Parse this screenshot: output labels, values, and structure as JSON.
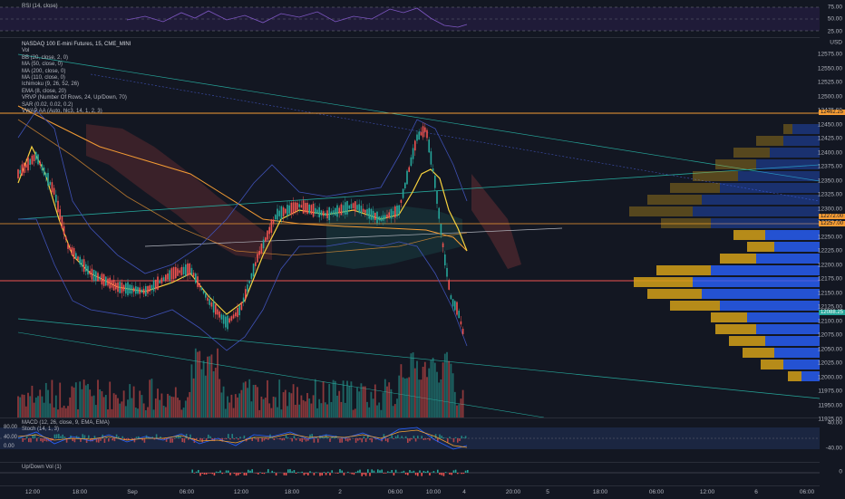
{
  "rsi": {
    "label": "RSI (14, close)",
    "axis": [
      "75.00",
      "50.00",
      "25.00"
    ]
  },
  "main": {
    "title": "NASDAQ 100 E-mini Futures, 15, CME_MINI",
    "currency": "USD",
    "indicators": [
      "Vol",
      "BB (20, close, 2, 0)",
      "MA (50, close, 0)",
      "MA (200, close, 0)",
      "MA (110, close, 0)",
      "Ichimoku (9, 26, 52, 26)",
      "EMA (8, close, 20)",
      "VRVP (Number Of Rows, 24, Up/Down, 70)",
      "SAR (0.02, 0.02, 0.2)",
      "VWAP AA (Auto, hlc3, 14, 1, 2, 3)"
    ],
    "price_axis": [
      "12575.00",
      "12550.00",
      "12525.00",
      "12500.00",
      "12475.00",
      "12450.00",
      "12425.00",
      "12400.00",
      "12375.00",
      "12350.00",
      "12325.00",
      "12300.00",
      "12275.00",
      "12250.00",
      "12225.00",
      "12200.00",
      "12175.00",
      "12150.00",
      "12125.00",
      "12100.00",
      "12075.00",
      "12050.00",
      "12025.00",
      "12000.00",
      "11975.00",
      "11950.00",
      "11925.00"
    ],
    "tags": {
      "top_orange": "12462.25",
      "mid_orange_1": "12272.00",
      "mid_orange_2": "12257.00",
      "current_price": "12088.25"
    }
  },
  "macd": {
    "label": "MACD (12, 26, close, 9, EMA, EMA)",
    "stoch": "Stoch (14, 1, 3)",
    "left_axis": [
      "80.00",
      "40.00",
      "0.00"
    ],
    "right_axis": [
      "40.00",
      "-40.00"
    ]
  },
  "updown": {
    "label": "Up/Down Vol (1)",
    "axis": "0"
  },
  "time_axis": [
    "12:00",
    "18:00",
    "Sep",
    "06:00",
    "12:00",
    "18:00",
    "2",
    "06:00",
    "10:00",
    "4",
    "20:00",
    "5",
    "18:00",
    "06:00",
    "12:00",
    "6",
    "06:00"
  ],
  "colors": {
    "up": "#26a69a",
    "down": "#ef5350",
    "vp_up": "#2962ff",
    "vp_down": "#d4a017",
    "ma_orange": "#f59c34",
    "ema_yellow": "#f7d23e",
    "bb_blue": "#3f51b5"
  }
}
